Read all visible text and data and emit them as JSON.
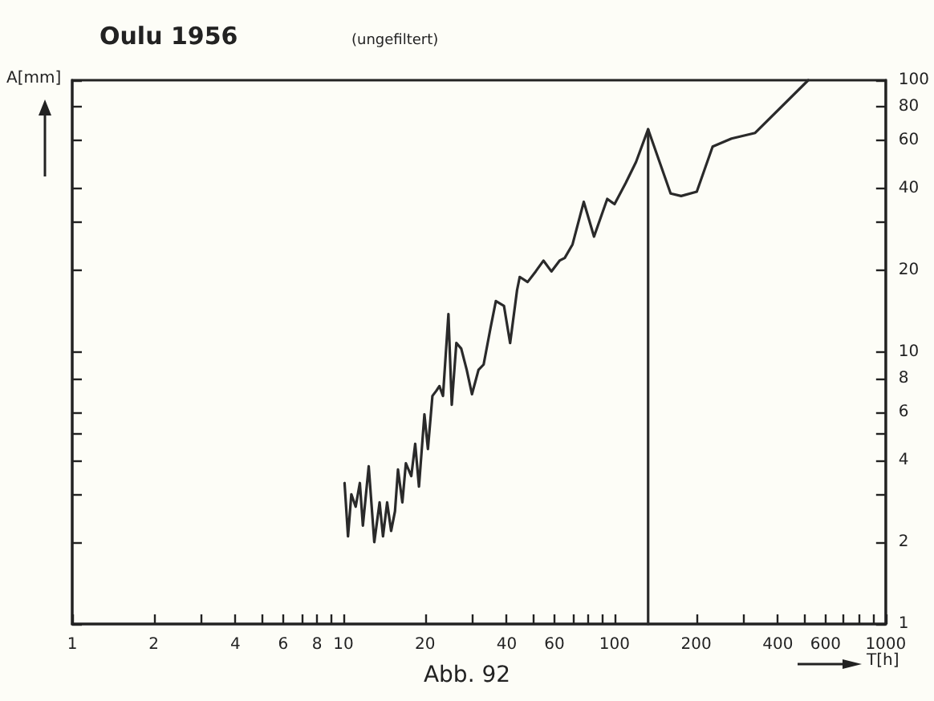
{
  "chart_data": {
    "type": "line",
    "title": "Oulu 1956",
    "subtitle": "(ungefiltert)",
    "xlabel": "T[h]",
    "ylabel": "A[mm]",
    "annotations": [
      "Abb. 92"
    ],
    "log": "xy",
    "grid": false,
    "marker": "none",
    "line_style": "solid",
    "xlim": [
      1,
      1000
    ],
    "ylim": [
      1,
      100
    ],
    "xticks": [
      1,
      2,
      {
        "value": 3,
        "label": null
      },
      4,
      {
        "value": 5,
        "label": null
      },
      6,
      {
        "value": 7,
        "label": null
      },
      8,
      {
        "value": 9,
        "label": null
      },
      10,
      20,
      {
        "value": 30,
        "label": null
      },
      40,
      {
        "value": 50,
        "label": null
      },
      60,
      {
        "value": 70,
        "label": null
      },
      {
        "value": 80,
        "label": null
      },
      {
        "value": 90,
        "label": null
      },
      100,
      200,
      {
        "value": 300,
        "label": null
      },
      400,
      {
        "value": 500,
        "label": null
      },
      600,
      {
        "value": 700,
        "label": null
      },
      {
        "value": 800,
        "label": null
      },
      {
        "value": 900,
        "label": null
      },
      1000
    ],
    "yticks": [
      1,
      2,
      {
        "value": 3,
        "label": null
      },
      4,
      {
        "value": 5,
        "label": null
      },
      6,
      8,
      10,
      20,
      {
        "value": 30,
        "label": null
      },
      40,
      60,
      80,
      100
    ],
    "series": [
      {
        "color": "#2a2a2a",
        "x": [
          10.1,
          10.4,
          10.7,
          11.1,
          11.5,
          11.8,
          12.4,
          13.0,
          13.6,
          14.0,
          14.5,
          15.0,
          15.5,
          15.9,
          16.5,
          17.0,
          17.8,
          18.4,
          19.0,
          19.9,
          20.5,
          21.3,
          22.0,
          22.6,
          23.3,
          24.4,
          25.1,
          26.1,
          27.2,
          28.5,
          29.8,
          31.5,
          32.9,
          34.9,
          36.5,
          39.1,
          41.2,
          43.7,
          44.7,
          47.8,
          51.2,
          54.7,
          58.5,
          62.7,
          65.5,
          70,
          77,
          84,
          94,
          100,
          110,
          120,
          133,
          161,
          176,
          201,
          230,
          270,
          330,
          518
        ],
        "values": [
          3.3,
          2.1,
          3.0,
          2.7,
          3.3,
          2.3,
          3.8,
          2.0,
          2.8,
          2.1,
          2.8,
          2.2,
          2.6,
          3.7,
          2.8,
          3.9,
          3.5,
          4.6,
          3.2,
          5.9,
          4.4,
          6.9,
          7.2,
          7.5,
          6.9,
          13.8,
          6.4,
          10.8,
          10.3,
          8.6,
          7.0,
          8.6,
          9.0,
          12.3,
          15.4,
          14.8,
          10.8,
          16.9,
          18.9,
          18.1,
          19.8,
          21.7,
          19.8,
          21.7,
          22.2,
          24.9,
          35.7,
          26.6,
          36.6,
          35.0,
          41.9,
          50,
          66,
          38.3,
          37.5,
          38.9,
          57,
          61,
          64,
          100
        ]
      },
      {
        "color": "#2a2a2a",
        "x": [
          133,
          133
        ],
        "values": [
          1,
          66
        ]
      }
    ]
  }
}
